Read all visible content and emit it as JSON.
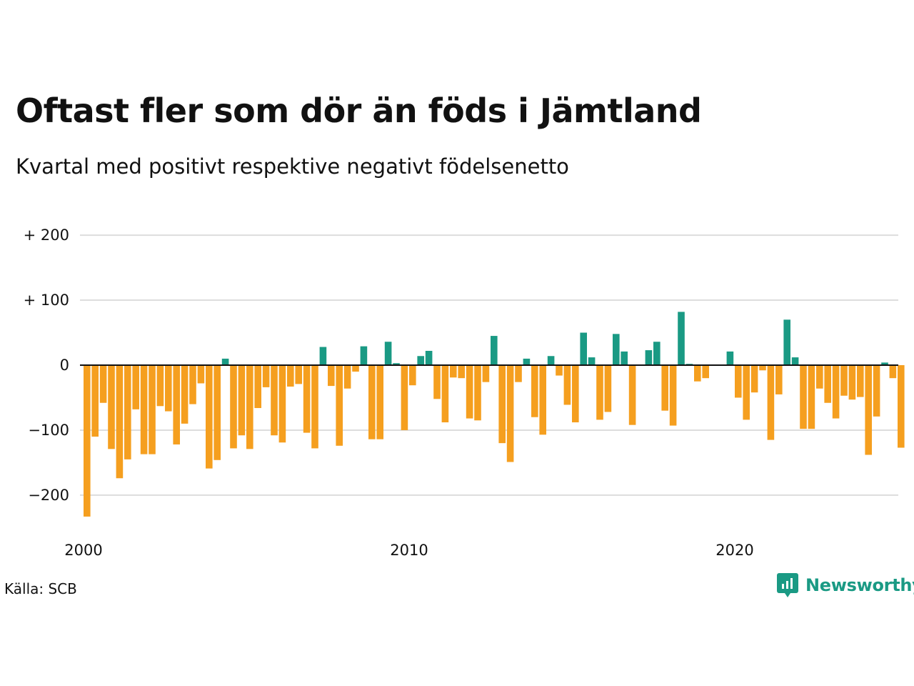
{
  "title": "Oftast fler som dör än föds i Jämtland",
  "subtitle": "Kvartal med positivt respektive negativt födelsenetto",
  "source": "Källa: SCB",
  "brand": {
    "name": "Newsworthy",
    "icon": "newsworthy-logo-icon",
    "color": "#1a9a84"
  },
  "colors": {
    "positive": "#1a9a84",
    "negative": "#f59f1f",
    "grid": "#dddddd",
    "zero_line": "#111111"
  },
  "chart_data": {
    "type": "bar",
    "title": "Oftast fler som dör än föds i Jämtland",
    "subtitle": "Kvartal med positivt respektive negativt födelsenetto",
    "xlabel": "",
    "ylabel": "",
    "ylim": [
      -235,
      200
    ],
    "yticks": [
      200,
      100,
      0,
      -100,
      -200
    ],
    "ytick_labels": [
      "+ 200",
      "+ 100",
      "0",
      "−100",
      "−200"
    ],
    "xticks": [
      2000,
      2010,
      2020
    ],
    "xtick_labels": [
      "2000",
      "2010",
      "2020"
    ],
    "grid": true,
    "legend": "none",
    "x_start": "2000 Q1",
    "values": [
      -233,
      -110,
      -58,
      -129,
      -174,
      -145,
      -68,
      -137,
      -137,
      -63,
      -71,
      -122,
      -90,
      -60,
      -28,
      -159,
      -146,
      10,
      -128,
      -108,
      -129,
      -66,
      -34,
      -108,
      -119,
      -33,
      -29,
      -104,
      -128,
      28,
      -32,
      -124,
      -36,
      -10,
      29,
      -114,
      -114,
      36,
      3,
      -100,
      -31,
      14,
      22,
      -52,
      -88,
      -19,
      -20,
      -82,
      -85,
      -26,
      45,
      -120,
      -149,
      -26,
      10,
      -80,
      -107,
      14,
      -16,
      -61,
      -88,
      50,
      12,
      -84,
      -72,
      48,
      21,
      -92,
      0,
      23,
      36,
      -70,
      -93,
      82,
      2,
      -25,
      -20,
      0,
      0,
      21,
      -50,
      -84,
      -42,
      -8,
      -115,
      -45,
      70,
      12,
      -98,
      -98,
      -36,
      -58,
      -82,
      -47,
      -53,
      -49,
      -138,
      -79,
      4,
      -20,
      -127
    ]
  }
}
